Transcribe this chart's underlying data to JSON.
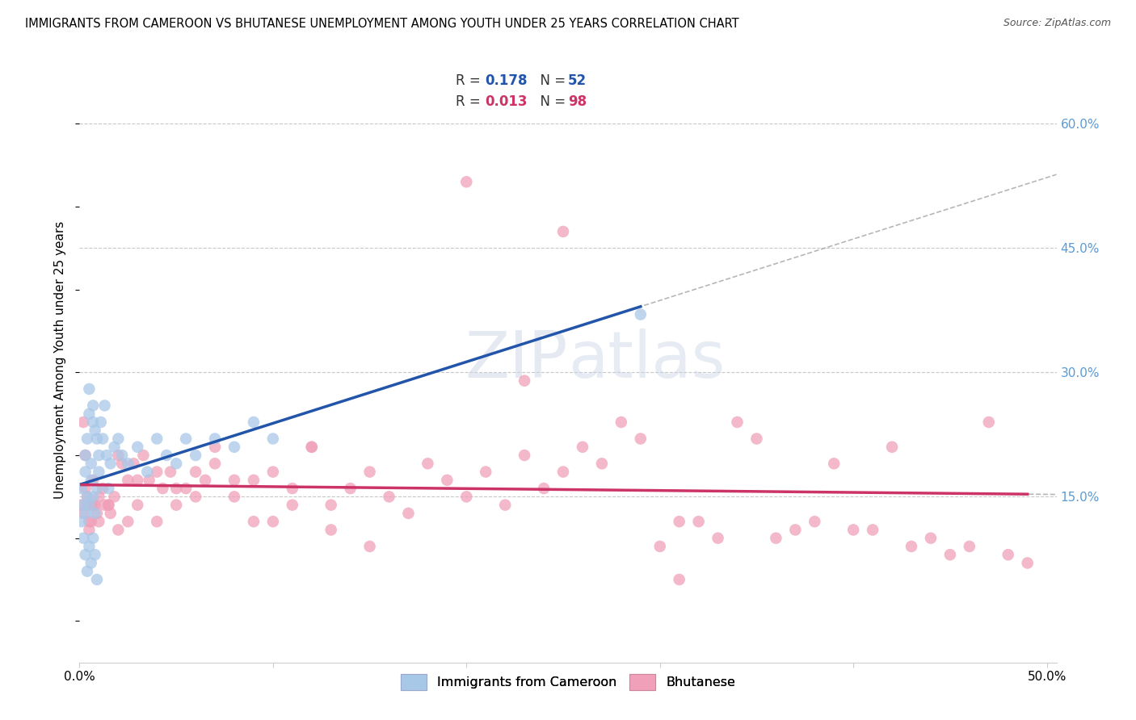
{
  "title": "IMMIGRANTS FROM CAMEROON VS BHUTANESE UNEMPLOYMENT AMONG YOUTH UNDER 25 YEARS CORRELATION CHART",
  "source": "Source: ZipAtlas.com",
  "ylabel": "Unemployment Among Youth under 25 years",
  "xlim": [
    0.0,
    0.505
  ],
  "ylim": [
    -0.05,
    0.68
  ],
  "yticks_right": [
    0.15,
    0.3,
    0.45,
    0.6
  ],
  "ytick_right_labels": [
    "15.0%",
    "30.0%",
    "45.0%",
    "60.0%"
  ],
  "grid_color": "#c8c8c8",
  "background_color": "#ffffff",
  "series1_name": "Immigrants from Cameroon",
  "series1_color": "#a8c8e8",
  "series1_line_color": "#2255aa",
  "series1_R": "0.178",
  "series1_N": "52",
  "series2_name": "Bhutanese",
  "series2_color": "#f0a0b8",
  "series2_line_color": "#cc3366",
  "series2_R": "0.013",
  "series2_N": "98",
  "dashed_color": "#aaaaaa",
  "cameroon_x": [
    0.001,
    0.001,
    0.002,
    0.002,
    0.003,
    0.003,
    0.003,
    0.004,
    0.004,
    0.005,
    0.005,
    0.005,
    0.006,
    0.006,
    0.007,
    0.007,
    0.007,
    0.008,
    0.008,
    0.009,
    0.009,
    0.01,
    0.01,
    0.011,
    0.012,
    0.013,
    0.014,
    0.015,
    0.016,
    0.018,
    0.02,
    0.022,
    0.025,
    0.03,
    0.035,
    0.04,
    0.045,
    0.05,
    0.055,
    0.06,
    0.07,
    0.08,
    0.09,
    0.1,
    0.003,
    0.004,
    0.005,
    0.006,
    0.007,
    0.008,
    0.009,
    0.29
  ],
  "cameroon_y": [
    0.16,
    0.12,
    0.14,
    0.1,
    0.2,
    0.18,
    0.13,
    0.15,
    0.22,
    0.25,
    0.28,
    0.14,
    0.17,
    0.19,
    0.24,
    0.26,
    0.15,
    0.13,
    0.23,
    0.22,
    0.16,
    0.18,
    0.2,
    0.24,
    0.22,
    0.26,
    0.2,
    0.16,
    0.19,
    0.21,
    0.22,
    0.2,
    0.19,
    0.21,
    0.18,
    0.22,
    0.2,
    0.19,
    0.22,
    0.2,
    0.22,
    0.21,
    0.24,
    0.22,
    0.08,
    0.06,
    0.09,
    0.07,
    0.1,
    0.08,
    0.05,
    0.37
  ],
  "bhutanese_x": [
    0.001,
    0.002,
    0.003,
    0.004,
    0.005,
    0.006,
    0.007,
    0.008,
    0.009,
    0.01,
    0.012,
    0.013,
    0.015,
    0.016,
    0.018,
    0.02,
    0.022,
    0.025,
    0.028,
    0.03,
    0.033,
    0.036,
    0.04,
    0.043,
    0.047,
    0.05,
    0.055,
    0.06,
    0.065,
    0.07,
    0.08,
    0.09,
    0.1,
    0.11,
    0.12,
    0.13,
    0.14,
    0.15,
    0.16,
    0.17,
    0.18,
    0.19,
    0.2,
    0.21,
    0.22,
    0.23,
    0.24,
    0.25,
    0.26,
    0.27,
    0.28,
    0.29,
    0.3,
    0.31,
    0.32,
    0.33,
    0.34,
    0.35,
    0.36,
    0.37,
    0.38,
    0.39,
    0.4,
    0.41,
    0.42,
    0.43,
    0.44,
    0.45,
    0.46,
    0.47,
    0.48,
    0.49,
    0.01,
    0.015,
    0.02,
    0.025,
    0.03,
    0.04,
    0.05,
    0.06,
    0.07,
    0.08,
    0.09,
    0.1,
    0.11,
    0.12,
    0.13,
    0.15,
    0.002,
    0.003,
    0.004,
    0.005,
    0.006,
    0.007,
    0.31,
    0.2,
    0.25,
    0.23
  ],
  "bhutanese_y": [
    0.14,
    0.13,
    0.16,
    0.15,
    0.12,
    0.14,
    0.17,
    0.14,
    0.13,
    0.15,
    0.16,
    0.14,
    0.14,
    0.13,
    0.15,
    0.2,
    0.19,
    0.17,
    0.19,
    0.17,
    0.2,
    0.17,
    0.18,
    0.16,
    0.18,
    0.14,
    0.16,
    0.18,
    0.17,
    0.19,
    0.15,
    0.17,
    0.18,
    0.16,
    0.21,
    0.14,
    0.16,
    0.18,
    0.15,
    0.13,
    0.19,
    0.17,
    0.15,
    0.18,
    0.14,
    0.2,
    0.16,
    0.18,
    0.21,
    0.19,
    0.24,
    0.22,
    0.09,
    0.12,
    0.12,
    0.1,
    0.24,
    0.22,
    0.1,
    0.11,
    0.12,
    0.19,
    0.11,
    0.11,
    0.21,
    0.09,
    0.1,
    0.08,
    0.09,
    0.24,
    0.08,
    0.07,
    0.12,
    0.14,
    0.11,
    0.12,
    0.14,
    0.12,
    0.16,
    0.15,
    0.21,
    0.17,
    0.12,
    0.12,
    0.14,
    0.21,
    0.11,
    0.09,
    0.24,
    0.2,
    0.14,
    0.11,
    0.12,
    0.14,
    0.05,
    0.53,
    0.47,
    0.29
  ]
}
